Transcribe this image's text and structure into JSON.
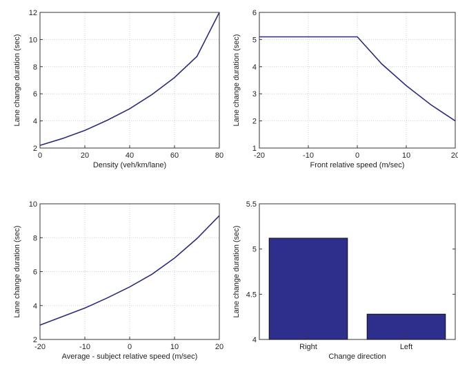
{
  "colors": {
    "line": "#2b2b7a",
    "bar": "#2e2e8c",
    "bar_edge": "#111111",
    "grid": "#cfcfcf"
  },
  "chart_data": [
    {
      "type": "line",
      "xlabel": "Density (veh/km/lane)",
      "ylabel": "Lane change duration (sec)",
      "xlim": [
        0,
        80
      ],
      "ylim": [
        2,
        12
      ],
      "xticks": [
        0,
        20,
        40,
        60,
        80
      ],
      "yticks": [
        2,
        4,
        6,
        8,
        10,
        12
      ],
      "grid": true,
      "series": [
        {
          "x": [
            0,
            10,
            20,
            30,
            40,
            50,
            60,
            70,
            80
          ],
          "y": [
            2.2,
            2.7,
            3.3,
            4.05,
            4.9,
            5.95,
            7.2,
            8.75,
            12.0
          ]
        }
      ]
    },
    {
      "type": "line",
      "xlabel": "Front relative speed (m/sec)",
      "ylabel": "Lane change duration (sec)",
      "xlim": [
        -20,
        20
      ],
      "ylim": [
        1,
        6
      ],
      "xticks": [
        -20,
        -10,
        0,
        10,
        20
      ],
      "yticks": [
        1,
        2,
        3,
        4,
        5,
        6
      ],
      "grid": true,
      "series": [
        {
          "x": [
            -20,
            -10,
            0,
            5,
            10,
            15,
            20
          ],
          "y": [
            5.1,
            5.1,
            5.1,
            4.1,
            3.3,
            2.6,
            2.0
          ]
        }
      ]
    },
    {
      "type": "line",
      "xlabel": "Average  - subject relative speed (m/sec)",
      "ylabel": "Lane change duration (sec)",
      "xlim": [
        -20,
        20
      ],
      "ylim": [
        2,
        10
      ],
      "xticks": [
        -20,
        -10,
        0,
        10,
        20
      ],
      "yticks": [
        2,
        4,
        6,
        8,
        10
      ],
      "grid": true,
      "series": [
        {
          "x": [
            -20,
            -15,
            -10,
            -5,
            0,
            5,
            10,
            15,
            20
          ],
          "y": [
            2.85,
            3.35,
            3.85,
            4.45,
            5.1,
            5.85,
            6.8,
            7.95,
            9.3
          ]
        }
      ]
    },
    {
      "type": "bar",
      "xlabel": "Change direction",
      "ylabel": "Lane change duration (sec)",
      "categories": [
        "Right",
        "Left"
      ],
      "values": [
        5.12,
        4.28
      ],
      "ylim": [
        4,
        5.5
      ],
      "yticks": [
        "4",
        "4.5",
        "5",
        "5.5"
      ],
      "grid": false
    }
  ]
}
